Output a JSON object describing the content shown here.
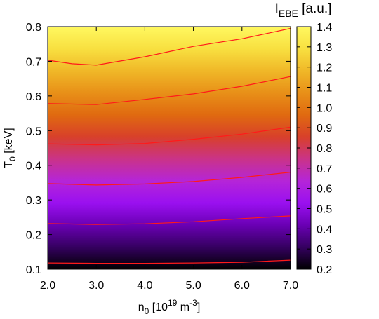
{
  "chart_data": {
    "type": "heatmap",
    "title": "",
    "xlabel": {
      "base": "n",
      "sub": "0",
      "text": " [10",
      "sup": "19",
      "text2": " m",
      "sup2": "-3",
      "text3": "]"
    },
    "ylabel": {
      "base": "T",
      "sub": "0",
      "text": " [keV]"
    },
    "colorbar_label": {
      "base": "I",
      "sub": "EBE",
      "text": " [a.u.]"
    },
    "xlim": [
      2.0,
      7.0
    ],
    "ylim": [
      0.1,
      0.8
    ],
    "clim": [
      0.2,
      1.4
    ],
    "x_ticks": [
      "2.0",
      "3.0",
      "4.0",
      "5.0",
      "6.0",
      "7.0"
    ],
    "y_ticks": [
      "0.1",
      "0.2",
      "0.3",
      "0.4",
      "0.5",
      "0.6",
      "0.7",
      "0.8"
    ],
    "colorbar_ticks": [
      "0.2",
      "0.3",
      "0.4",
      "0.5",
      "0.6",
      "0.7",
      "0.8",
      "0.9",
      "1.0",
      "1.1",
      "1.2",
      "1.3",
      "1.4"
    ],
    "colormap": [
      "#000000",
      "#350060",
      "#6a00b4",
      "#9a10f0",
      "#b525d8",
      "#ca3388",
      "#d8402a",
      "#e06a10",
      "#e89018",
      "#f0b828",
      "#f8e040",
      "#fff860"
    ],
    "contour_color": "#ff1a1a",
    "contours": [
      {
        "level": 0.2,
        "points": [
          [
            2.0,
            0.118
          ],
          [
            3.0,
            0.117
          ],
          [
            4.0,
            0.117
          ],
          [
            5.0,
            0.118
          ],
          [
            6.0,
            0.12
          ],
          [
            7.0,
            0.126
          ]
        ]
      },
      {
        "level": 0.4,
        "points": [
          [
            2.0,
            0.232
          ],
          [
            3.0,
            0.229
          ],
          [
            4.0,
            0.231
          ],
          [
            5.0,
            0.237
          ],
          [
            6.0,
            0.246
          ],
          [
            7.0,
            0.254
          ]
        ]
      },
      {
        "level": 0.6,
        "points": [
          [
            2.0,
            0.347
          ],
          [
            3.0,
            0.343
          ],
          [
            4.0,
            0.346
          ],
          [
            5.0,
            0.353
          ],
          [
            6.0,
            0.365
          ],
          [
            7.0,
            0.38
          ]
        ]
      },
      {
        "level": 0.8,
        "points": [
          [
            2.0,
            0.462
          ],
          [
            3.0,
            0.459
          ],
          [
            4.0,
            0.463
          ],
          [
            5.0,
            0.475
          ],
          [
            6.0,
            0.49
          ],
          [
            7.0,
            0.51
          ]
        ]
      },
      {
        "level": 1.0,
        "points": [
          [
            2.0,
            0.578
          ],
          [
            3.0,
            0.575
          ],
          [
            4.0,
            0.59
          ],
          [
            5.0,
            0.606
          ],
          [
            6.0,
            0.628
          ],
          [
            7.0,
            0.656
          ]
        ]
      },
      {
        "level": 1.2,
        "points": [
          [
            2.0,
            0.703
          ],
          [
            2.5,
            0.693
          ],
          [
            3.0,
            0.689
          ],
          [
            4.0,
            0.713
          ],
          [
            5.0,
            0.743
          ],
          [
            6.0,
            0.765
          ],
          [
            7.0,
            0.795
          ]
        ]
      }
    ]
  }
}
